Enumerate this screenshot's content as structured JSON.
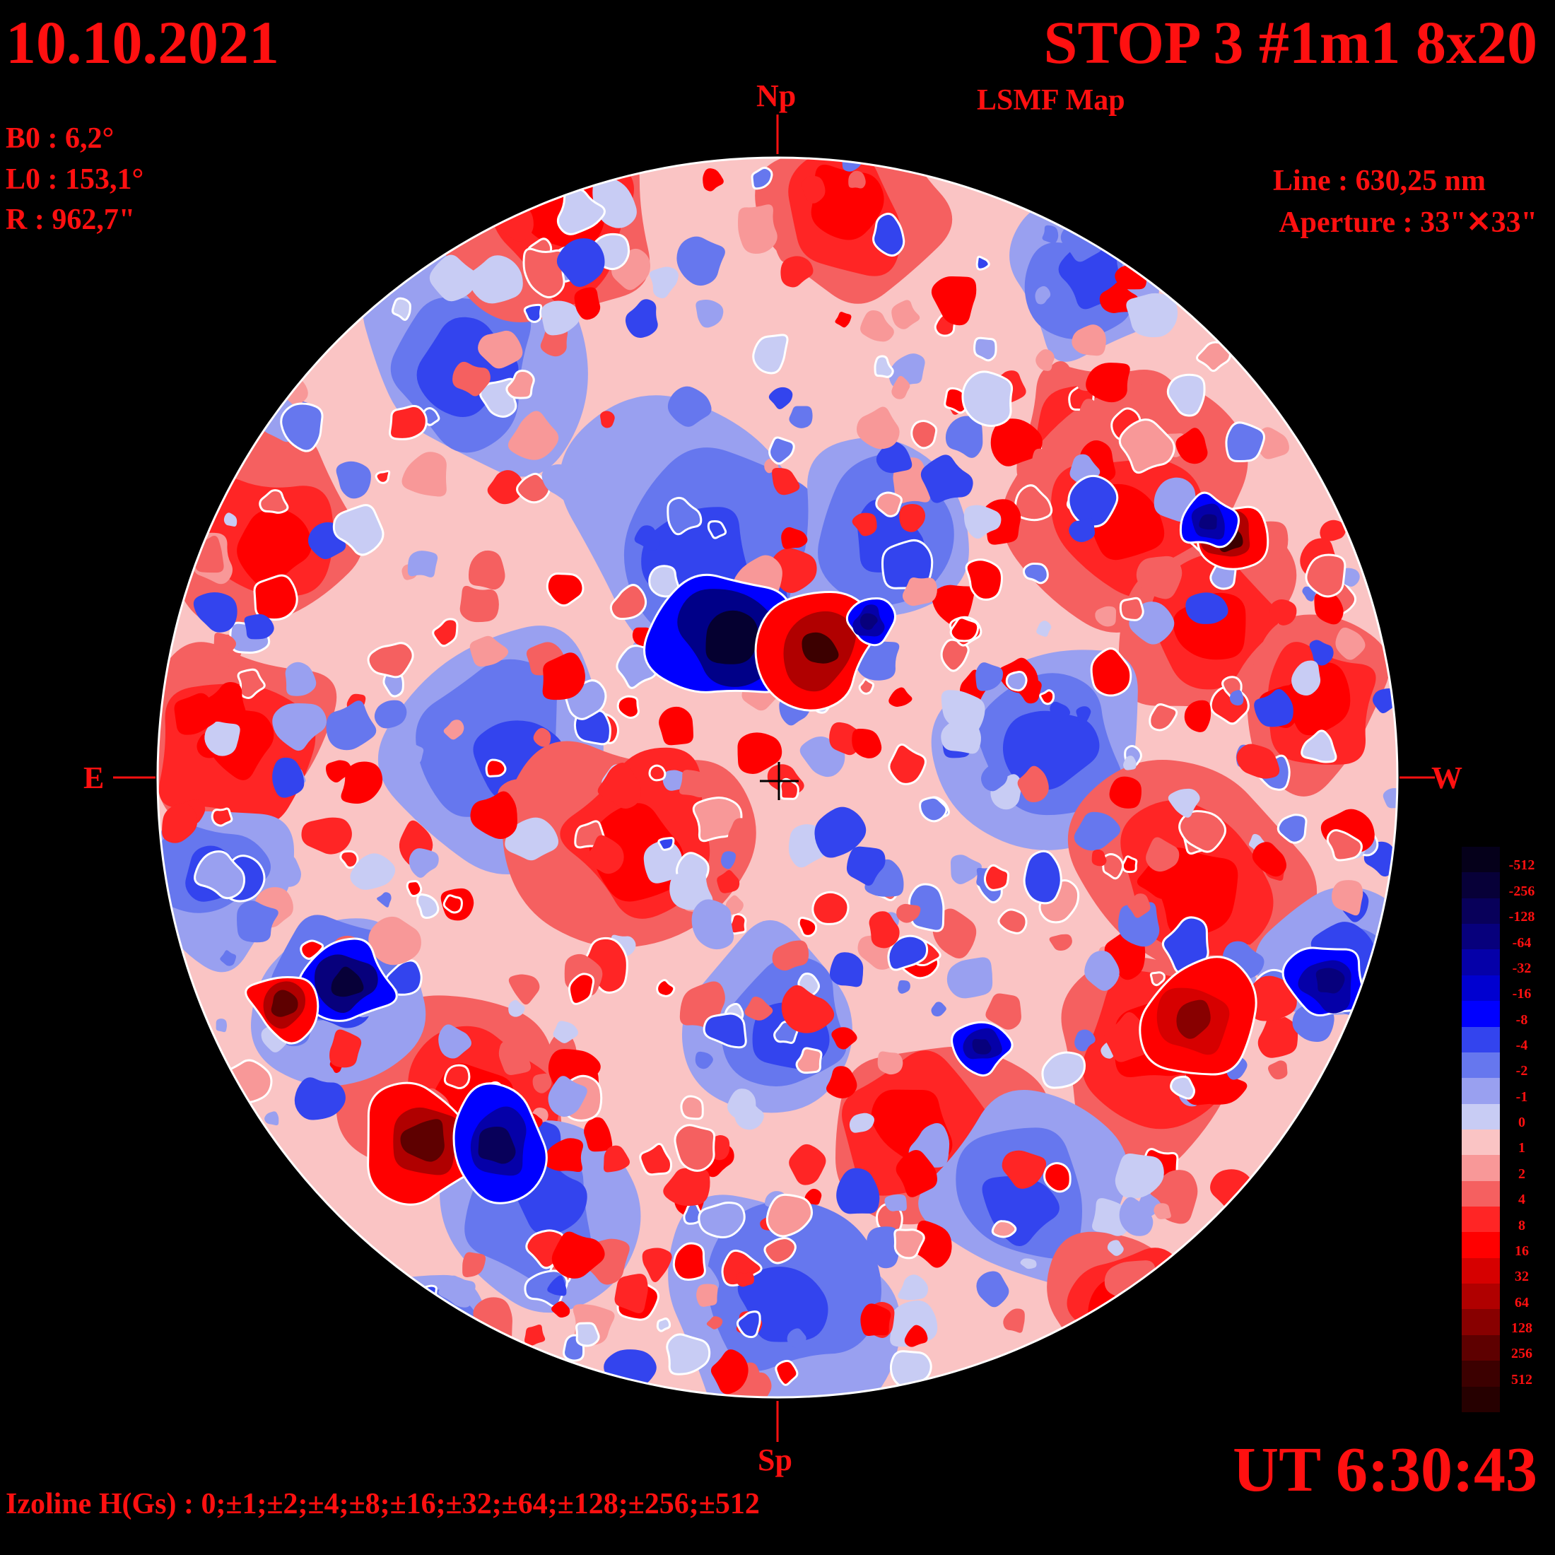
{
  "header": {
    "date": "10.10.2021",
    "title": "STOP 3 #1m1 8x20",
    "subtitle": "LSMF  Map"
  },
  "params": {
    "b0": "B0 : 6,2°",
    "l0": "L0 : 153,1°",
    "r": "R  : 962,7\""
  },
  "instrument": {
    "line": "Line :  630,25 nm",
    "aperture": "Aperture : 33\"✕33\""
  },
  "time": "UT 6:30:43",
  "izoline": "Izoline H(Gs) : 0;±1;±2;±4;±8;±16;±32;±64;±128;±256;±512",
  "compass": {
    "north": "Np",
    "south": "Sp",
    "east": "E",
    "west": "W"
  },
  "colors": {
    "background": "#000000",
    "text": "#ff1010",
    "contour": "#ffffff"
  },
  "colorbar": {
    "levels": [
      {
        "label": "-512",
        "color": "#05001a"
      },
      {
        "label": "-256",
        "color": "#070038"
      },
      {
        "label": "-128",
        "color": "#08005a"
      },
      {
        "label": "-64",
        "color": "#07007c"
      },
      {
        "label": "-32",
        "color": "#0500a8"
      },
      {
        "label": "-16",
        "color": "#0000d0"
      },
      {
        "label": "-8",
        "color": "#0000ff"
      },
      {
        "label": "-4",
        "color": "#3344ee"
      },
      {
        "label": "-2",
        "color": "#6677ee"
      },
      {
        "label": "-1",
        "color": "#99a0f0"
      },
      {
        "label": "0",
        "color": "#c8ccf4"
      },
      {
        "label": "1",
        "color": "#fac4c4"
      },
      {
        "label": "2",
        "color": "#f89898"
      },
      {
        "label": "4",
        "color": "#f56060"
      },
      {
        "label": "8",
        "color": "#ff2525"
      },
      {
        "label": "16",
        "color": "#ff0000"
      },
      {
        "label": "32",
        "color": "#d60000"
      },
      {
        "label": "64",
        "color": "#b00000"
      },
      {
        "label": "128",
        "color": "#880000"
      },
      {
        "label": "256",
        "color": "#5e0000"
      },
      {
        "label": "512",
        "color": "#3c0000"
      },
      {
        "label": "",
        "color": "#260000"
      }
    ]
  }
}
